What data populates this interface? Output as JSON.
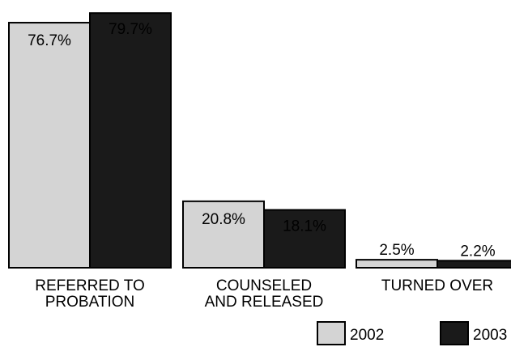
{
  "chart_data": {
    "type": "bar",
    "categories": [
      [
        "REFERRED TO",
        "PROBATION"
      ],
      [
        "COUNSELED",
        "AND RELEASED"
      ],
      [
        "TURNED OVER"
      ]
    ],
    "series": [
      {
        "name": "2002",
        "values": [
          76.7,
          20.8,
          2.5
        ],
        "labels": [
          "76.7%",
          "20.8%",
          "2.5%"
        ],
        "color": "#d4d4d4"
      },
      {
        "name": "2003",
        "values": [
          79.7,
          18.1,
          2.2
        ],
        "labels": [
          "79.7%",
          "18.1%",
          "2.2%"
        ],
        "color": "#1a1a1a"
      }
    ],
    "ylim": [
      0,
      80
    ],
    "legend_position": "bottom-right",
    "grid": false
  }
}
